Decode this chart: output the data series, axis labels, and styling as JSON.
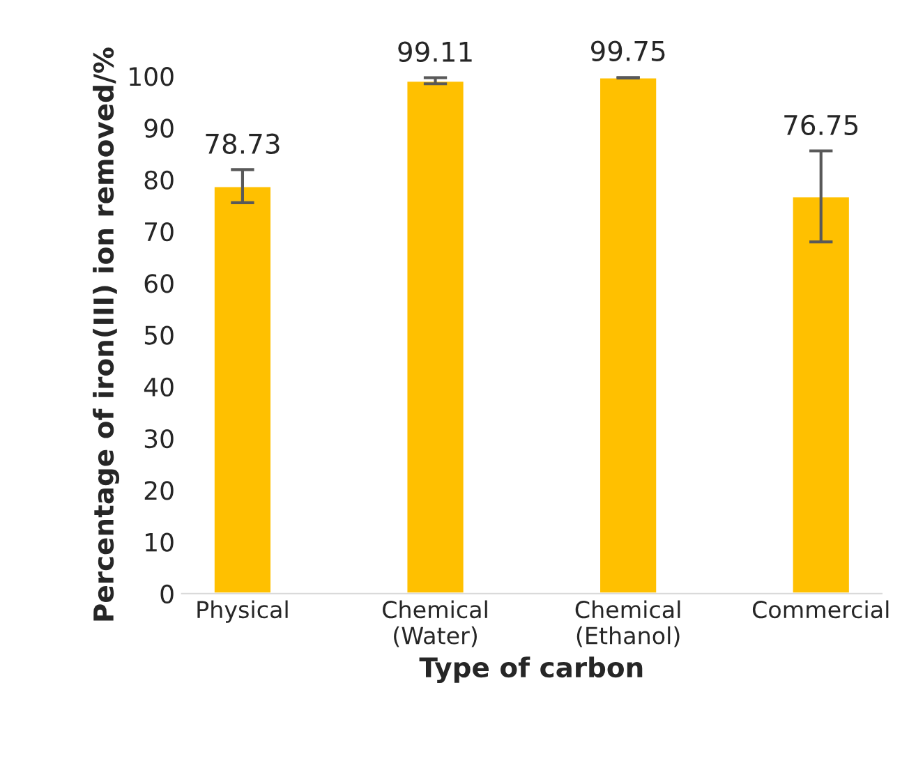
{
  "chart_data": {
    "type": "bar",
    "xlabel": "Type of carbon",
    "ylabel": "Percentage of iron(III) ion removed/%",
    "categories": [
      "Physical",
      "Chemical\n(Water)",
      "Chemical\n(Ethanol)",
      "Commercial"
    ],
    "values": [
      78.73,
      99.11,
      99.75,
      76.75
    ],
    "errors": [
      3.2,
      0.6,
      0.1,
      8.8
    ],
    "color": "#ffc000",
    "ylim": [
      0,
      100
    ],
    "yticks": [
      0,
      10,
      20,
      30,
      40,
      50,
      60,
      70,
      80,
      90,
      100
    ],
    "data_labels": true,
    "grid": false,
    "legend": false
  }
}
